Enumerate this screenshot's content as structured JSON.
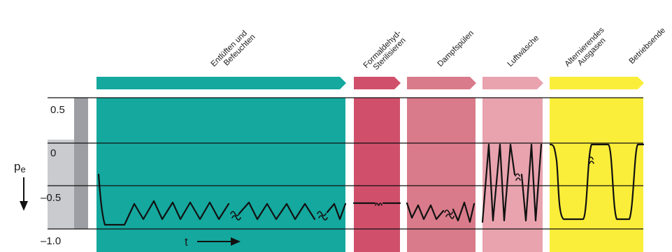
{
  "phases": [
    {
      "label_lines": [
        "Entlüften und",
        "Befeuchten"
      ],
      "color": "#14a89e"
    },
    {
      "label_lines": [
        "Formaldehyd-",
        "Sterilisieren"
      ],
      "color": "#d0506c"
    },
    {
      "label_lines": [
        "Dampfspülen"
      ],
      "color": "#d97b8a"
    },
    {
      "label_lines": [
        "Luftwäsche"
      ],
      "color": "#e8a3ae"
    },
    {
      "label_lines": [
        "Alternierendes",
        "Ausgasen"
      ],
      "color": "#fbee3a"
    },
    {
      "label_lines": [
        "Betriebsende"
      ],
      "color": "#fbee3a"
    }
  ],
  "y_axis": {
    "label_main": "p",
    "label_sub": "e",
    "ticks": [
      "0.5",
      "0",
      "–0.5",
      "–1.0"
    ]
  },
  "time_axis_label": "t",
  "colors": {
    "band_light": "#c9cbcf",
    "band_dark": "#9c9ea3",
    "line": "#111111"
  }
}
